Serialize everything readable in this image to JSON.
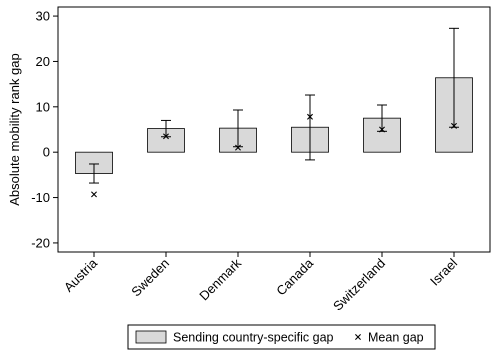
{
  "chart_data": {
    "type": "bar",
    "ylabel": "Absolute mobility rank gap",
    "ylim": [
      -22,
      32
    ],
    "yticks": [
      -20,
      -10,
      0,
      10,
      20,
      30
    ],
    "categories": [
      "Austria",
      "Sweden",
      "Denmark",
      "Canada",
      "Switzerland",
      "Israel"
    ],
    "series": [
      {
        "name": "Sending country-specific gap",
        "type": "bar",
        "values": [
          -4.7,
          5.2,
          5.3,
          5.5,
          7.5,
          16.4
        ],
        "ci_low": [
          -6.8,
          3.4,
          1.2,
          -1.7,
          4.6,
          5.5
        ],
        "ci_high": [
          -2.6,
          7.0,
          9.3,
          12.6,
          10.4,
          27.3
        ]
      },
      {
        "name": "Mean gap",
        "type": "scatter",
        "marker": "x",
        "values": [
          -9.3,
          3.5,
          1.0,
          7.8,
          5.0,
          5.8
        ]
      }
    ],
    "legend": {
      "position": "bottom",
      "items": [
        "Sending country-specific gap",
        "Mean gap"
      ]
    },
    "colors": {
      "bar_fill": "#d9d9d9",
      "bar_stroke": "#000000",
      "error_bar": "#000000",
      "marker": "#000000"
    },
    "grid": false
  }
}
